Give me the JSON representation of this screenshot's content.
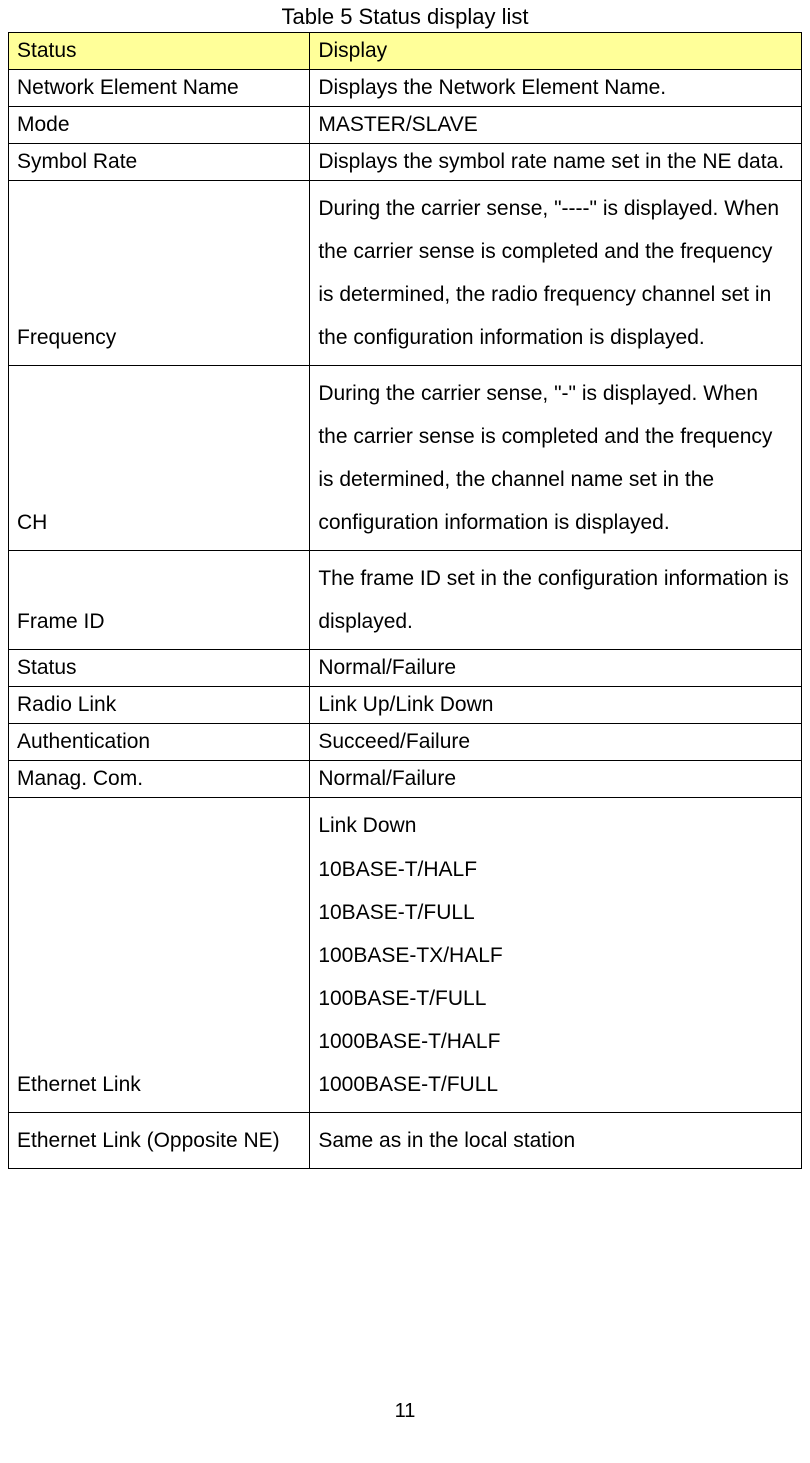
{
  "title": "Table 5 Status display list",
  "header": {
    "status": "Status",
    "display": "Display"
  },
  "rows": [
    {
      "status": "Network Element Name",
      "display": "Displays the Network Element Name."
    },
    {
      "status": "Mode",
      "display": "MASTER/SLAVE"
    },
    {
      "status": "Symbol Rate",
      "display": "Displays the symbol rate name set in the NE data."
    },
    {
      "status": "Frequency",
      "display": "During the carrier sense, \"----\" is displayed. When the carrier sense is completed and the frequency is determined, the radio frequency channel set in the configuration information is displayed."
    },
    {
      "status": "CH",
      "display": "During the carrier sense, \"-\" is displayed. When the carrier sense is completed and the frequency is determined, the channel name set in the configuration information is displayed."
    },
    {
      "status": "Frame ID",
      "display": "The frame ID set in the configuration information is displayed."
    },
    {
      "status": "Status",
      "display": "Normal/Failure"
    },
    {
      "status": "Radio Link",
      "display": "Link Up/Link Down"
    },
    {
      "status": "Authentication",
      "display": "Succeed/Failure"
    },
    {
      "status": "Manag. Com.",
      "display": "Normal/Failure"
    },
    {
      "status": "Ethernet Link",
      "display": "Link Down\n10BASE-T/HALF\n10BASE-T/FULL\n100BASE-TX/HALF\n100BASE-T/FULL\n1000BASE-T/HALF\n1000BASE-T/FULL",
      "displayValign": "bottom",
      "statusValign": "bottom"
    },
    {
      "status": "Ethernet Link (Opposite NE)",
      "display": "Same as in the local station",
      "displayValign": "top"
    }
  ],
  "pageNumber": "11",
  "style": {
    "headerBg": "#ffff99",
    "borderColor": "#000000",
    "textColor": "#000000",
    "fontSize": 21,
    "titleFontSize": 22,
    "lineHeightMultiline": 2.05,
    "colWidths": {
      "status": "38%",
      "display": "62%"
    }
  }
}
